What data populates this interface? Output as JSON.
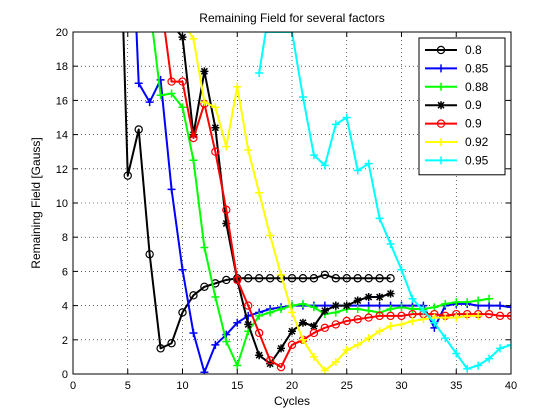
{
  "chart_data": {
    "type": "line",
    "title": "Remaining Field for several factors",
    "xlabel": "Cycles",
    "ylabel": "Remaining Field [Gauss]",
    "xlim": [
      0,
      40
    ],
    "ylim": [
      0,
      20
    ],
    "xticks": [
      "0",
      "5",
      "10",
      "15",
      "20",
      "25",
      "30",
      "35",
      "40"
    ],
    "yticks": [
      "0",
      "2",
      "4",
      "6",
      "8",
      "10",
      "12",
      "14",
      "16",
      "18",
      "20"
    ],
    "grid": true,
    "legend_position": "top-right",
    "series": [
      {
        "name": "0.8",
        "color": "#000000",
        "marker": "circle",
        "x": [
          4.6,
          5,
          6,
          7,
          8,
          9,
          10,
          11,
          12,
          13,
          14,
          15,
          16,
          17,
          18,
          19,
          20,
          21,
          22,
          23,
          24,
          25,
          26,
          27,
          28,
          29
        ],
        "y": [
          20,
          11.6,
          14.3,
          7.0,
          1.5,
          1.8,
          3.6,
          4.6,
          5.1,
          5.3,
          5.5,
          5.6,
          5.6,
          5.6,
          5.6,
          5.6,
          5.6,
          5.6,
          5.6,
          5.8,
          5.6,
          5.6,
          5.6,
          5.6,
          5.6,
          5.6
        ]
      },
      {
        "name": "0.85",
        "color": "#0000ff",
        "marker": "plus",
        "x": [
          5.8,
          6,
          7,
          8,
          9,
          10,
          11,
          12,
          13,
          14,
          15,
          16,
          17,
          18,
          19,
          20,
          21,
          22,
          23,
          24,
          25,
          26,
          27,
          28,
          29,
          30,
          31,
          32,
          33,
          34,
          35,
          36,
          37,
          38,
          39,
          40
        ],
        "y": [
          20,
          17.0,
          15.9,
          17.2,
          10.8,
          6.1,
          2.4,
          0.1,
          1.7,
          2.3,
          3.0,
          3.4,
          3.6,
          3.8,
          3.9,
          4.0,
          4.0,
          4.0,
          4.0,
          4.0,
          4.0,
          4.0,
          4.0,
          4.0,
          4.0,
          4.0,
          4.0,
          4.0,
          2.7,
          4.0,
          4.1,
          4.1,
          4.0,
          4.0,
          4.0,
          3.9
        ]
      },
      {
        "name": "0.88",
        "color": "#00ff00",
        "marker": "plus",
        "x": [
          7.3,
          8,
          9,
          10,
          11,
          12,
          13,
          14,
          15,
          16,
          17,
          18,
          19,
          20,
          21,
          22,
          23,
          24,
          25,
          26,
          27,
          28,
          29,
          30,
          31,
          32,
          33,
          34,
          35,
          36,
          37,
          38
        ],
        "y": [
          20,
          16.3,
          16.4,
          15.6,
          12.5,
          7.4,
          4.5,
          1.9,
          0.5,
          2.5,
          3.4,
          3.6,
          3.8,
          4.0,
          4.1,
          3.9,
          3.5,
          3.6,
          3.8,
          3.8,
          3.7,
          3.6,
          3.8,
          3.9,
          3.8,
          3.8,
          3.9,
          4.1,
          4.2,
          4.2,
          4.3,
          4.4
        ]
      },
      {
        "name": "0.9",
        "color": "#000000",
        "marker": "star",
        "x": [
          9.6,
          10,
          11,
          12,
          13,
          14,
          15,
          16,
          17,
          18,
          19,
          20,
          21,
          22,
          23,
          24,
          25,
          26,
          27,
          28,
          29
        ],
        "y": [
          20,
          19.7,
          14.0,
          17.7,
          14.4,
          8.8,
          5.5,
          2.9,
          1.1,
          0.6,
          1.5,
          2.5,
          3.0,
          2.8,
          3.7,
          4.0,
          4.0,
          4.3,
          4.5,
          4.5,
          4.7
        ]
      },
      {
        "name": "0.9",
        "color": "#ff0000",
        "marker": "circle",
        "x": [
          8.4,
          9,
          10,
          11,
          12,
          13,
          14,
          15,
          16,
          17,
          18,
          19,
          20,
          21,
          22,
          23,
          24,
          25,
          26,
          27,
          28,
          29,
          30,
          31,
          32,
          33,
          34,
          35,
          36,
          37,
          38,
          39,
          40
        ],
        "y": [
          20,
          17.1,
          17.1,
          13.8,
          15.8,
          13.0,
          9.6,
          5.5,
          4.0,
          2.4,
          0.8,
          0.4,
          1.7,
          2.0,
          2.4,
          2.7,
          2.9,
          3.1,
          3.2,
          3.3,
          3.4,
          3.4,
          3.4,
          3.5,
          3.5,
          3.5,
          3.4,
          3.5,
          3.5,
          3.5,
          3.5,
          3.4,
          3.4
        ]
      },
      {
        "name": "0.92",
        "color": "#ffff00",
        "marker": "plus",
        "x": [
          10.6,
          11,
          12,
          13,
          14,
          15,
          16,
          17,
          18,
          19,
          20,
          21,
          22,
          23,
          24,
          25,
          26,
          27,
          28,
          29,
          30,
          31,
          32,
          33,
          34,
          35,
          36,
          37
        ],
        "y": [
          20,
          19.6,
          15.9,
          15.6,
          13.3,
          16.8,
          13.1,
          10.6,
          8.1,
          5.8,
          3.6,
          2.0,
          1.0,
          0.2,
          0.7,
          1.4,
          1.7,
          2.1,
          2.5,
          2.8,
          2.9,
          3.1,
          3.2,
          3.3,
          3.3,
          3.3,
          3.4,
          3.4
        ]
      },
      {
        "name": "0.95",
        "color": "#00ffff",
        "marker": "plus",
        "x": [
          17,
          17.6,
          18,
          19,
          20,
          21,
          22,
          23,
          24,
          25,
          26,
          27,
          28,
          29,
          30,
          31,
          32,
          33,
          34,
          35,
          36,
          37,
          38,
          39,
          40
        ],
        "y": [
          17.6,
          20,
          20,
          20,
          20,
          16.2,
          12.8,
          12.2,
          14.6,
          15.0,
          11.9,
          12.3,
          9.1,
          7.6,
          6.1,
          4.4,
          3.7,
          3.0,
          2.1,
          1.2,
          0.3,
          0.5,
          0.9,
          1.5,
          1.7
        ]
      }
    ]
  }
}
